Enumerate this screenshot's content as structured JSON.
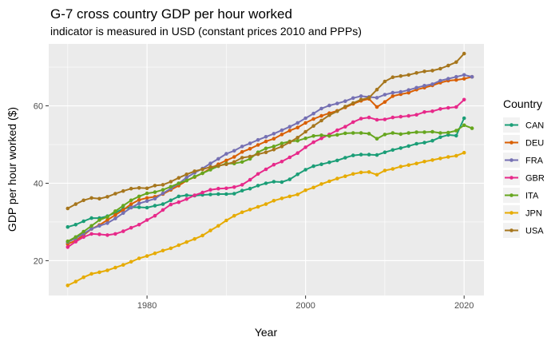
{
  "chart_data": {
    "type": "line",
    "title": "G-7 cross country GDP per hour worked",
    "subtitle": "indicator is measured in USD (constant prices 2010 and PPPs)",
    "xlabel": "Year",
    "ylabel": "GDP per hour worked ($)",
    "xlim": [
      1967.6,
      2022.5
    ],
    "ylim": [
      11.0,
      76.0
    ],
    "x_ticks": [
      1980,
      2000,
      2020
    ],
    "y_ticks": [
      20,
      40,
      60
    ],
    "grid": true,
    "legend_title": "Country",
    "legend_position": "right",
    "x": [
      1970,
      1971,
      1972,
      1973,
      1974,
      1975,
      1976,
      1977,
      1978,
      1979,
      1980,
      1981,
      1982,
      1983,
      1984,
      1985,
      1986,
      1987,
      1988,
      1989,
      1990,
      1991,
      1992,
      1993,
      1994,
      1995,
      1996,
      1997,
      1998,
      1999,
      2000,
      2001,
      2002,
      2003,
      2004,
      2005,
      2006,
      2007,
      2008,
      2009,
      2010,
      2011,
      2012,
      2013,
      2014,
      2015,
      2016,
      2017,
      2018,
      2019,
      2020,
      2021
    ],
    "series": [
      {
        "name": "CAN",
        "color": "#1b9e77",
        "values": [
          28.7,
          29.3,
          30.2,
          31.0,
          31.0,
          31.5,
          32.4,
          33.4,
          33.8,
          33.8,
          33.7,
          34.2,
          34.6,
          35.6,
          36.6,
          36.9,
          36.8,
          37.0,
          37.1,
          37.2,
          37.2,
          37.3,
          38.1,
          38.6,
          39.4,
          40.0,
          40.4,
          40.3,
          41.0,
          42.3,
          43.5,
          44.4,
          44.9,
          45.4,
          45.9,
          46.6,
          47.2,
          47.4,
          47.4,
          47.3,
          48.0,
          48.6,
          49.1,
          49.6,
          50.2,
          50.5,
          51.0,
          51.9,
          52.5,
          52.3,
          56.8,
          null
        ]
      },
      {
        "name": "DEU",
        "color": "#d95f02",
        "values": [
          24.3,
          25.2,
          26.6,
          28.2,
          29.2,
          30.5,
          31.8,
          33.1,
          34.6,
          35.7,
          36.2,
          36.5,
          37.2,
          38.3,
          39.4,
          40.7,
          41.6,
          42.6,
          43.8,
          44.9,
          45.9,
          46.8,
          48.1,
          48.9,
          49.9,
          50.8,
          51.5,
          52.6,
          53.6,
          54.4,
          55.6,
          56.6,
          57.4,
          58.1,
          58.7,
          59.6,
          60.5,
          61.3,
          61.8,
          59.7,
          61.0,
          62.5,
          63.0,
          63.4,
          64.2,
          64.7,
          65.3,
          66.0,
          66.5,
          66.7,
          67.0,
          67.5
        ]
      },
      {
        "name": "FRA",
        "color": "#7570b3",
        "values": [
          24.8,
          25.8,
          27.0,
          28.2,
          29.0,
          29.7,
          30.9,
          32.3,
          33.7,
          34.8,
          35.4,
          36.0,
          37.4,
          38.6,
          39.9,
          41.5,
          42.7,
          43.8,
          45.1,
          46.3,
          47.6,
          48.4,
          49.5,
          50.3,
          51.2,
          52.0,
          52.8,
          53.7,
          54.6,
          55.6,
          56.8,
          58.0,
          59.3,
          60.1,
          60.6,
          61.2,
          62.0,
          62.5,
          62.3,
          62.1,
          62.9,
          63.4,
          63.6,
          64.1,
          64.7,
          65.2,
          65.6,
          66.5,
          67.0,
          67.5,
          68.0,
          67.5
        ]
      },
      {
        "name": "GBR",
        "color": "#e7298a",
        "values": [
          23.5,
          24.9,
          26.1,
          26.9,
          26.8,
          26.6,
          26.9,
          27.6,
          28.5,
          29.3,
          30.5,
          31.6,
          33.1,
          34.5,
          35.1,
          35.9,
          36.9,
          37.6,
          38.3,
          38.6,
          38.7,
          39.0,
          39.6,
          40.9,
          42.4,
          43.6,
          44.8,
          45.6,
          46.7,
          47.8,
          49.3,
          50.6,
          51.6,
          52.6,
          53.7,
          54.6,
          55.8,
          56.7,
          57.0,
          56.4,
          56.5,
          57.0,
          57.2,
          57.4,
          57.7,
          58.4,
          58.6,
          59.2,
          59.5,
          59.7,
          61.6,
          null
        ]
      },
      {
        "name": "ITA",
        "color": "#66a61e",
        "values": [
          25.0,
          26.1,
          27.5,
          29.0,
          30.5,
          31.3,
          32.8,
          34.2,
          35.6,
          36.6,
          37.4,
          37.7,
          38.3,
          39.1,
          40.0,
          40.7,
          41.7,
          42.6,
          43.5,
          44.4,
          45.1,
          45.1,
          45.5,
          46.3,
          48.0,
          49.0,
          49.5,
          50.3,
          50.8,
          51.0,
          51.6,
          52.2,
          52.4,
          52.2,
          52.5,
          52.9,
          53.0,
          53.0,
          52.8,
          51.5,
          52.6,
          53.0,
          52.7,
          53.0,
          53.2,
          53.2,
          53.3,
          53.0,
          53.1,
          53.6,
          55.0,
          54.2
        ]
      },
      {
        "name": "JPN",
        "color": "#e6ab02",
        "values": [
          13.6,
          14.6,
          15.7,
          16.6,
          17.0,
          17.5,
          18.2,
          18.9,
          19.7,
          20.6,
          21.2,
          21.9,
          22.6,
          23.2,
          24.0,
          24.8,
          25.6,
          26.5,
          27.8,
          29.0,
          30.4,
          31.6,
          32.5,
          33.2,
          33.9,
          34.6,
          35.5,
          36.1,
          36.6,
          37.1,
          38.2,
          38.9,
          39.8,
          40.5,
          41.2,
          41.8,
          42.4,
          42.8,
          42.9,
          42.2,
          43.3,
          43.7,
          44.3,
          44.7,
          45.1,
          45.6,
          46.0,
          46.4,
          46.8,
          47.1,
          47.9,
          null
        ]
      },
      {
        "name": "USA",
        "color": "#a6761d",
        "values": [
          33.5,
          34.6,
          35.6,
          36.2,
          36.0,
          36.5,
          37.3,
          38.0,
          38.6,
          38.8,
          38.7,
          39.4,
          39.6,
          40.4,
          41.4,
          42.3,
          43.1,
          43.6,
          44.2,
          44.5,
          44.9,
          45.5,
          46.6,
          46.9,
          47.5,
          48.0,
          48.7,
          49.5,
          50.6,
          51.8,
          53.3,
          54.8,
          56.2,
          57.6,
          58.6,
          59.8,
          60.7,
          61.6,
          62.1,
          64.2,
          66.3,
          67.4,
          67.7,
          68.0,
          68.5,
          68.9,
          69.1,
          69.6,
          70.4,
          71.3,
          73.5,
          null
        ]
      }
    ]
  }
}
